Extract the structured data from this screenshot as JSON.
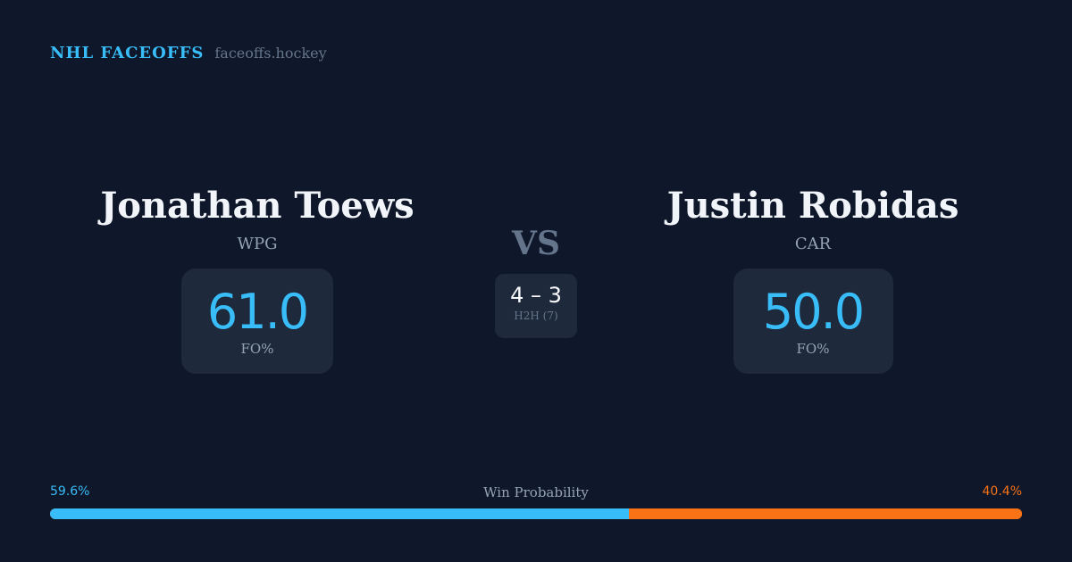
{
  "brand": {
    "name": "NHL FACEOFFS",
    "site": "faceoffs.hockey"
  },
  "players": [
    {
      "name": "Jonathan Toews",
      "team": "WPG",
      "fo_pct": "61.0",
      "fo_label": "FO%"
    },
    {
      "name": "Justin Robidas",
      "team": "CAR",
      "fo_pct": "50.0",
      "fo_label": "FO%"
    }
  ],
  "versus": {
    "label": "VS",
    "h2h_score": "4 – 3",
    "h2h_label": "H2H (7)"
  },
  "win_probability": {
    "title": "Win Probability",
    "left_label": "59.6%",
    "right_label": "40.4%",
    "left_value": 59.6,
    "right_value": 40.4,
    "left_color": "#38bdf8",
    "right_color": "#f97316"
  }
}
